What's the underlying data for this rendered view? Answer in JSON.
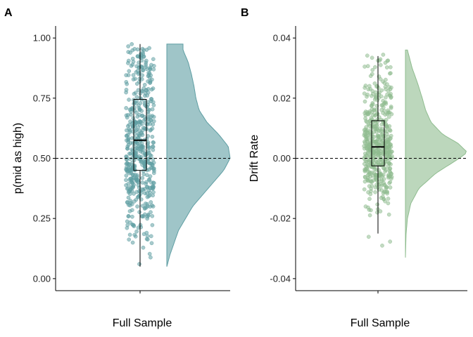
{
  "panels": [
    {
      "tag": "A",
      "ylabel": "p(mid as high)",
      "xlabel": "Full Sample",
      "yticks": [
        "0.00",
        "0.25",
        "0.50",
        "0.75",
        "1.00"
      ],
      "color": "#5f9ea3"
    },
    {
      "tag": "B",
      "ylabel": "Drift Rate",
      "xlabel": "Full Sample",
      "yticks": [
        "-0.04",
        "-0.02",
        "0.00",
        "0.02",
        "0.04"
      ],
      "color": "#8fbc8f"
    }
  ],
  "chart_data": [
    {
      "type": "raincloud",
      "panel": "A",
      "category": "Full Sample",
      "ylabel": "p(mid as high)",
      "xlabel": "Full Sample",
      "ylim": [
        -0.05,
        1.05
      ],
      "yticks": [
        0,
        0.25,
        0.5,
        0.75,
        1.0
      ],
      "reference_line": 0.5,
      "boxplot": {
        "min": 0.05,
        "q1": 0.45,
        "median": 0.575,
        "q3": 0.745,
        "max": 0.975
      },
      "density": {
        "y": [
          0.05,
          0.1,
          0.2,
          0.3,
          0.4,
          0.45,
          0.5,
          0.55,
          0.6,
          0.65,
          0.7,
          0.75,
          0.8,
          0.85,
          0.9,
          0.95,
          0.975
        ],
        "d": [
          0.0,
          0.05,
          0.18,
          0.4,
          0.72,
          0.88,
          0.98,
          0.95,
          0.8,
          0.62,
          0.5,
          0.45,
          0.42,
          0.38,
          0.33,
          0.25,
          0.25
        ]
      },
      "n_points": 520,
      "color": "#5f9ea3"
    },
    {
      "type": "raincloud",
      "panel": "B",
      "category": "Full Sample",
      "ylabel": "Drift Rate",
      "xlabel": "Full Sample",
      "ylim": [
        -0.044,
        0.044
      ],
      "yticks": [
        -0.04,
        -0.02,
        0.0,
        0.02,
        0.04
      ],
      "reference_line": 0.0,
      "boxplot": {
        "min": -0.025,
        "q1": -0.0025,
        "median": 0.0038,
        "q3": 0.0125,
        "max": 0.034
      },
      "density": {
        "y": [
          -0.033,
          -0.025,
          -0.02,
          -0.015,
          -0.01,
          -0.005,
          0.0,
          0.002,
          0.005,
          0.008,
          0.012,
          0.016,
          0.02,
          0.025,
          0.03,
          0.036
        ],
        "d": [
          0.0,
          0.01,
          0.03,
          0.08,
          0.2,
          0.45,
          0.8,
          0.92,
          0.78,
          0.55,
          0.38,
          0.3,
          0.25,
          0.18,
          0.1,
          0.03
        ]
      },
      "n_points": 520,
      "color": "#8fbc8f"
    }
  ]
}
